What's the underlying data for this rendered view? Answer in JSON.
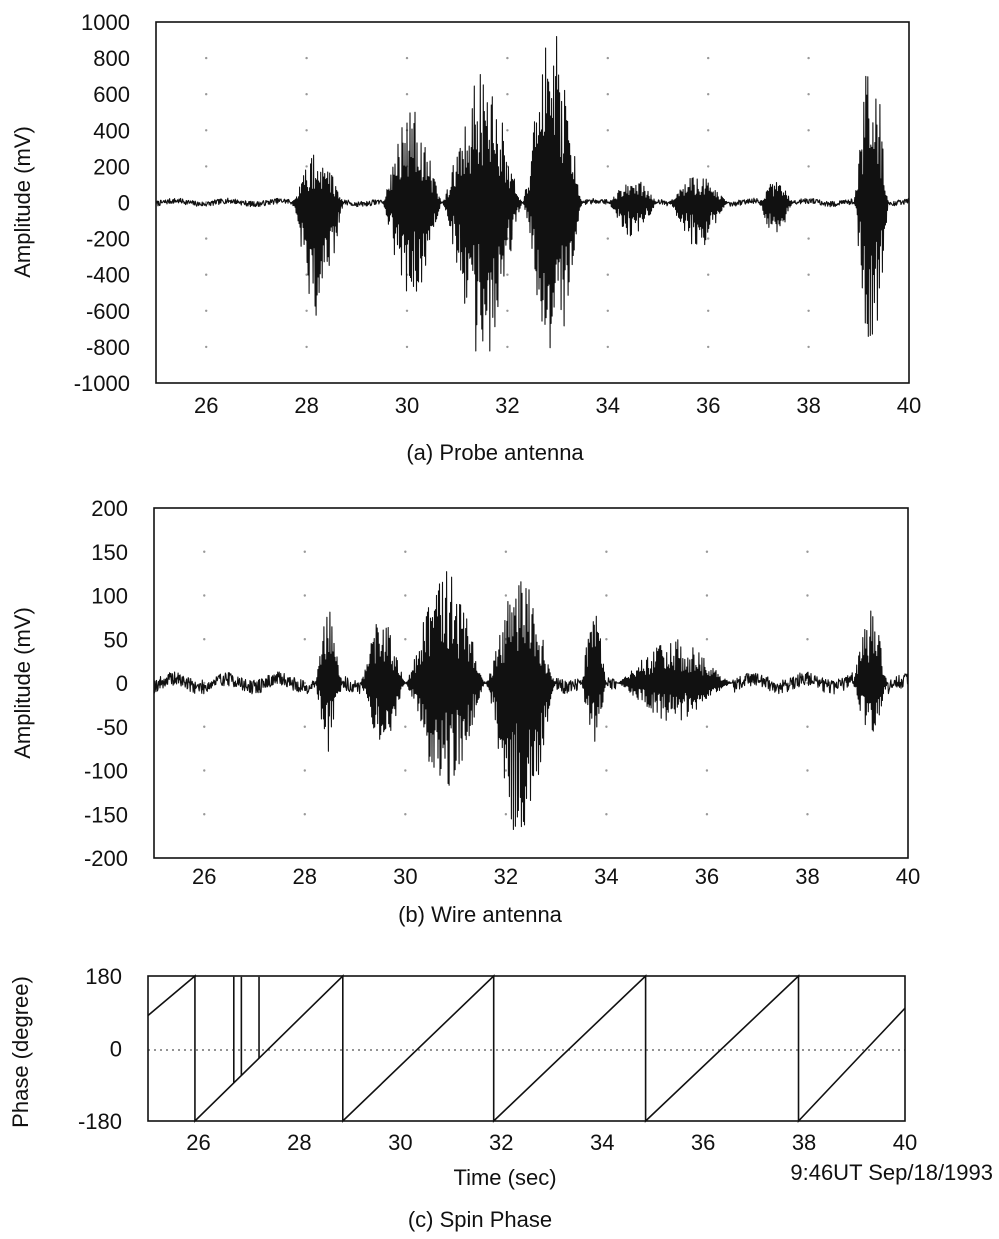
{
  "figure": {
    "timestamp": "9:46UT Sep/18/1993"
  },
  "chart_data": [
    {
      "type": "line",
      "caption": "(a)  Probe antenna",
      "ylabel": "Amplitude  (mV)",
      "xlabel": "",
      "xlim": [
        25,
        40
      ],
      "ylim": [
        -1000,
        1000
      ],
      "xticks": [
        "26",
        "28",
        "30",
        "32",
        "34",
        "36",
        "38",
        "40"
      ],
      "yticks": [
        "1000",
        "800",
        "600",
        "400",
        "200",
        "0",
        "-200",
        "-400",
        "-600",
        "-800",
        "-1000"
      ],
      "grid": "dotted",
      "background_amplitude": 15,
      "bursts": [
        {
          "start": 27.7,
          "end": 28.75,
          "peak_pos": 280,
          "peak_neg": -650
        },
        {
          "start": 29.5,
          "end": 30.7,
          "peak_pos": 520,
          "peak_neg": -600
        },
        {
          "start": 30.7,
          "end": 32.3,
          "peak_pos": 720,
          "peak_neg": -880
        },
        {
          "start": 32.3,
          "end": 33.5,
          "peak_pos": 960,
          "peak_neg": -920
        },
        {
          "start": 34.0,
          "end": 35.0,
          "peak_pos": 140,
          "peak_neg": -200
        },
        {
          "start": 35.2,
          "end": 36.4,
          "peak_pos": 150,
          "peak_neg": -270
        },
        {
          "start": 37.0,
          "end": 37.7,
          "peak_pos": 120,
          "peak_neg": -200
        },
        {
          "start": 38.9,
          "end": 39.6,
          "peak_pos": 880,
          "peak_neg": -930
        }
      ]
    },
    {
      "type": "line",
      "caption": "(b)  Wire antenna",
      "ylabel": "Amplitude  (mV)",
      "xlabel": "",
      "xlim": [
        25,
        40
      ],
      "ylim": [
        -200,
        200
      ],
      "xticks": [
        "26",
        "28",
        "30",
        "32",
        "34",
        "36",
        "38",
        "40"
      ],
      "yticks": [
        "200",
        "150",
        "100",
        "50",
        "0",
        "-50",
        "-100",
        "-150",
        "-200"
      ],
      "grid": "dotted",
      "background_amplitude": 8,
      "bursts": [
        {
          "start": 28.2,
          "end": 28.75,
          "peak_pos": 85,
          "peak_neg": -80
        },
        {
          "start": 29.1,
          "end": 30.0,
          "peak_pos": 80,
          "peak_neg": -75
        },
        {
          "start": 30.0,
          "end": 31.6,
          "peak_pos": 130,
          "peak_neg": -125
        },
        {
          "start": 31.6,
          "end": 33.0,
          "peak_pos": 120,
          "peak_neg": -185
        },
        {
          "start": 33.5,
          "end": 34.0,
          "peak_pos": 90,
          "peak_neg": -75
        },
        {
          "start": 34.2,
          "end": 36.5,
          "peak_pos": 50,
          "peak_neg": -45
        },
        {
          "start": 38.9,
          "end": 39.6,
          "peak_pos": 90,
          "peak_neg": -65
        }
      ]
    },
    {
      "type": "line",
      "caption": "(c)  Spin Phase",
      "ylabel": "Phase (degree)",
      "xlabel": "Time (sec)",
      "xlim": [
        25,
        40
      ],
      "ylim": [
        -180,
        180
      ],
      "xticks": [
        "26",
        "28",
        "30",
        "32",
        "34",
        "36",
        "38",
        "40"
      ],
      "yticks": [
        "180",
        "0",
        "-180"
      ],
      "grid": "dotted zero line",
      "segments": [
        {
          "x0": 25.0,
          "y0": 82,
          "x1": 25.93,
          "y1": 180
        },
        {
          "x0": 25.93,
          "y0": -180,
          "x1": 28.86,
          "y1": 180
        },
        {
          "x0": 28.86,
          "y0": -180,
          "x1": 31.85,
          "y1": 180
        },
        {
          "x0": 31.85,
          "y0": -180,
          "x1": 34.86,
          "y1": 180
        },
        {
          "x0": 34.86,
          "y0": -180,
          "x1": 37.89,
          "y1": 180
        },
        {
          "x0": 37.89,
          "y0": -180,
          "x1": 40.0,
          "y1": 100
        }
      ],
      "spikes": [
        26.7,
        26.85,
        27.2
      ]
    }
  ]
}
